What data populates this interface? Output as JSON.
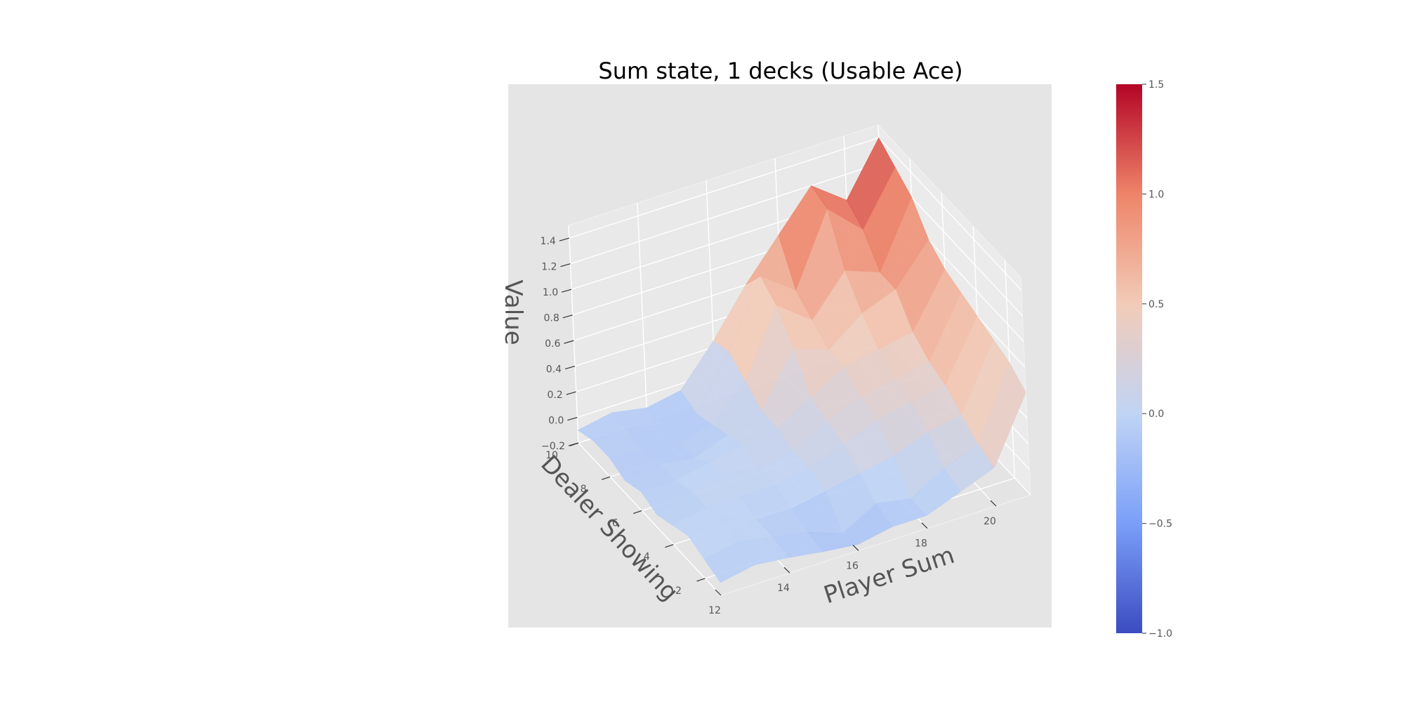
{
  "chart_data": {
    "type": "surface3d",
    "title": "Sum state, 1 decks (Usable Ace)",
    "xlabel": "Player Sum",
    "ylabel": "Dealer Showing",
    "zlabel": "Value",
    "xlim": [
      12,
      21
    ],
    "ylim": [
      1,
      10
    ],
    "zlim": [
      -0.2,
      1.5
    ],
    "grid": true,
    "x": [
      12,
      13,
      14,
      15,
      16,
      17,
      18,
      19,
      20,
      21
    ],
    "y": [
      1,
      2,
      3,
      4,
      5,
      6,
      7,
      8,
      9,
      10
    ],
    "x_ticks": [
      "12",
      "14",
      "16",
      "18",
      "20"
    ],
    "y_ticks": [
      "2",
      "4",
      "6",
      "8",
      "10"
    ],
    "z_ticks": [
      "−0.2",
      "0.0",
      "0.2",
      "0.4",
      "0.6",
      "0.8",
      "1.0",
      "1.2",
      "1.4"
    ],
    "z": [
      [
        -0.1,
        -0.05,
        -0.08,
        -0.12,
        -0.15,
        -0.1,
        -0.1,
        0.0,
        0.1,
        0.6
      ],
      [
        -0.05,
        0.0,
        -0.05,
        -0.1,
        -0.2,
        -0.05,
        -0.1,
        0.05,
        0.15,
        0.7
      ],
      [
        0.0,
        0.05,
        -0.05,
        -0.05,
        0.0,
        0.05,
        0.1,
        0.2,
        0.25,
        0.75
      ],
      [
        -0.05,
        0.0,
        0.0,
        0.0,
        0.05,
        0.15,
        0.25,
        0.3,
        0.35,
        0.8
      ],
      [
        -0.1,
        0.0,
        0.05,
        0.0,
        0.05,
        0.2,
        0.3,
        0.35,
        0.4,
        0.85
      ],
      [
        -0.05,
        -0.05,
        0.0,
        0.05,
        0.1,
        0.25,
        0.4,
        0.45,
        0.5,
        0.9
      ],
      [
        -0.1,
        -0.05,
        -0.1,
        0.0,
        0.1,
        0.5,
        0.4,
        0.6,
        0.7,
        1.0
      ],
      [
        -0.05,
        -0.1,
        -0.1,
        -0.05,
        0.2,
        0.7,
        0.5,
        0.8,
        0.7,
        1.2
      ],
      [
        -0.05,
        -0.05,
        -0.1,
        -0.1,
        0.3,
        0.8,
        0.6,
        1.15,
        0.9,
        1.3
      ],
      [
        -0.1,
        -0.05,
        -0.1,
        -0.05,
        0.25,
        0.6,
        0.9,
        1.2,
        1.0,
        1.4
      ]
    ],
    "colorbar": {
      "ticks": [
        "−1.0",
        "−0.5",
        "0.0",
        "0.5",
        "1.0",
        "1.5"
      ],
      "range": [
        -1.0,
        1.5
      ],
      "colormap": "coolwarm",
      "colors": [
        "#3b4cc0",
        "#7b9ff9",
        "#c0d4f5",
        "#f2cbb7",
        "#ee8468",
        "#b40426"
      ]
    },
    "colors": {
      "pane": "#e5e5e5",
      "grid": "#ffffff",
      "text": "#555555"
    }
  }
}
